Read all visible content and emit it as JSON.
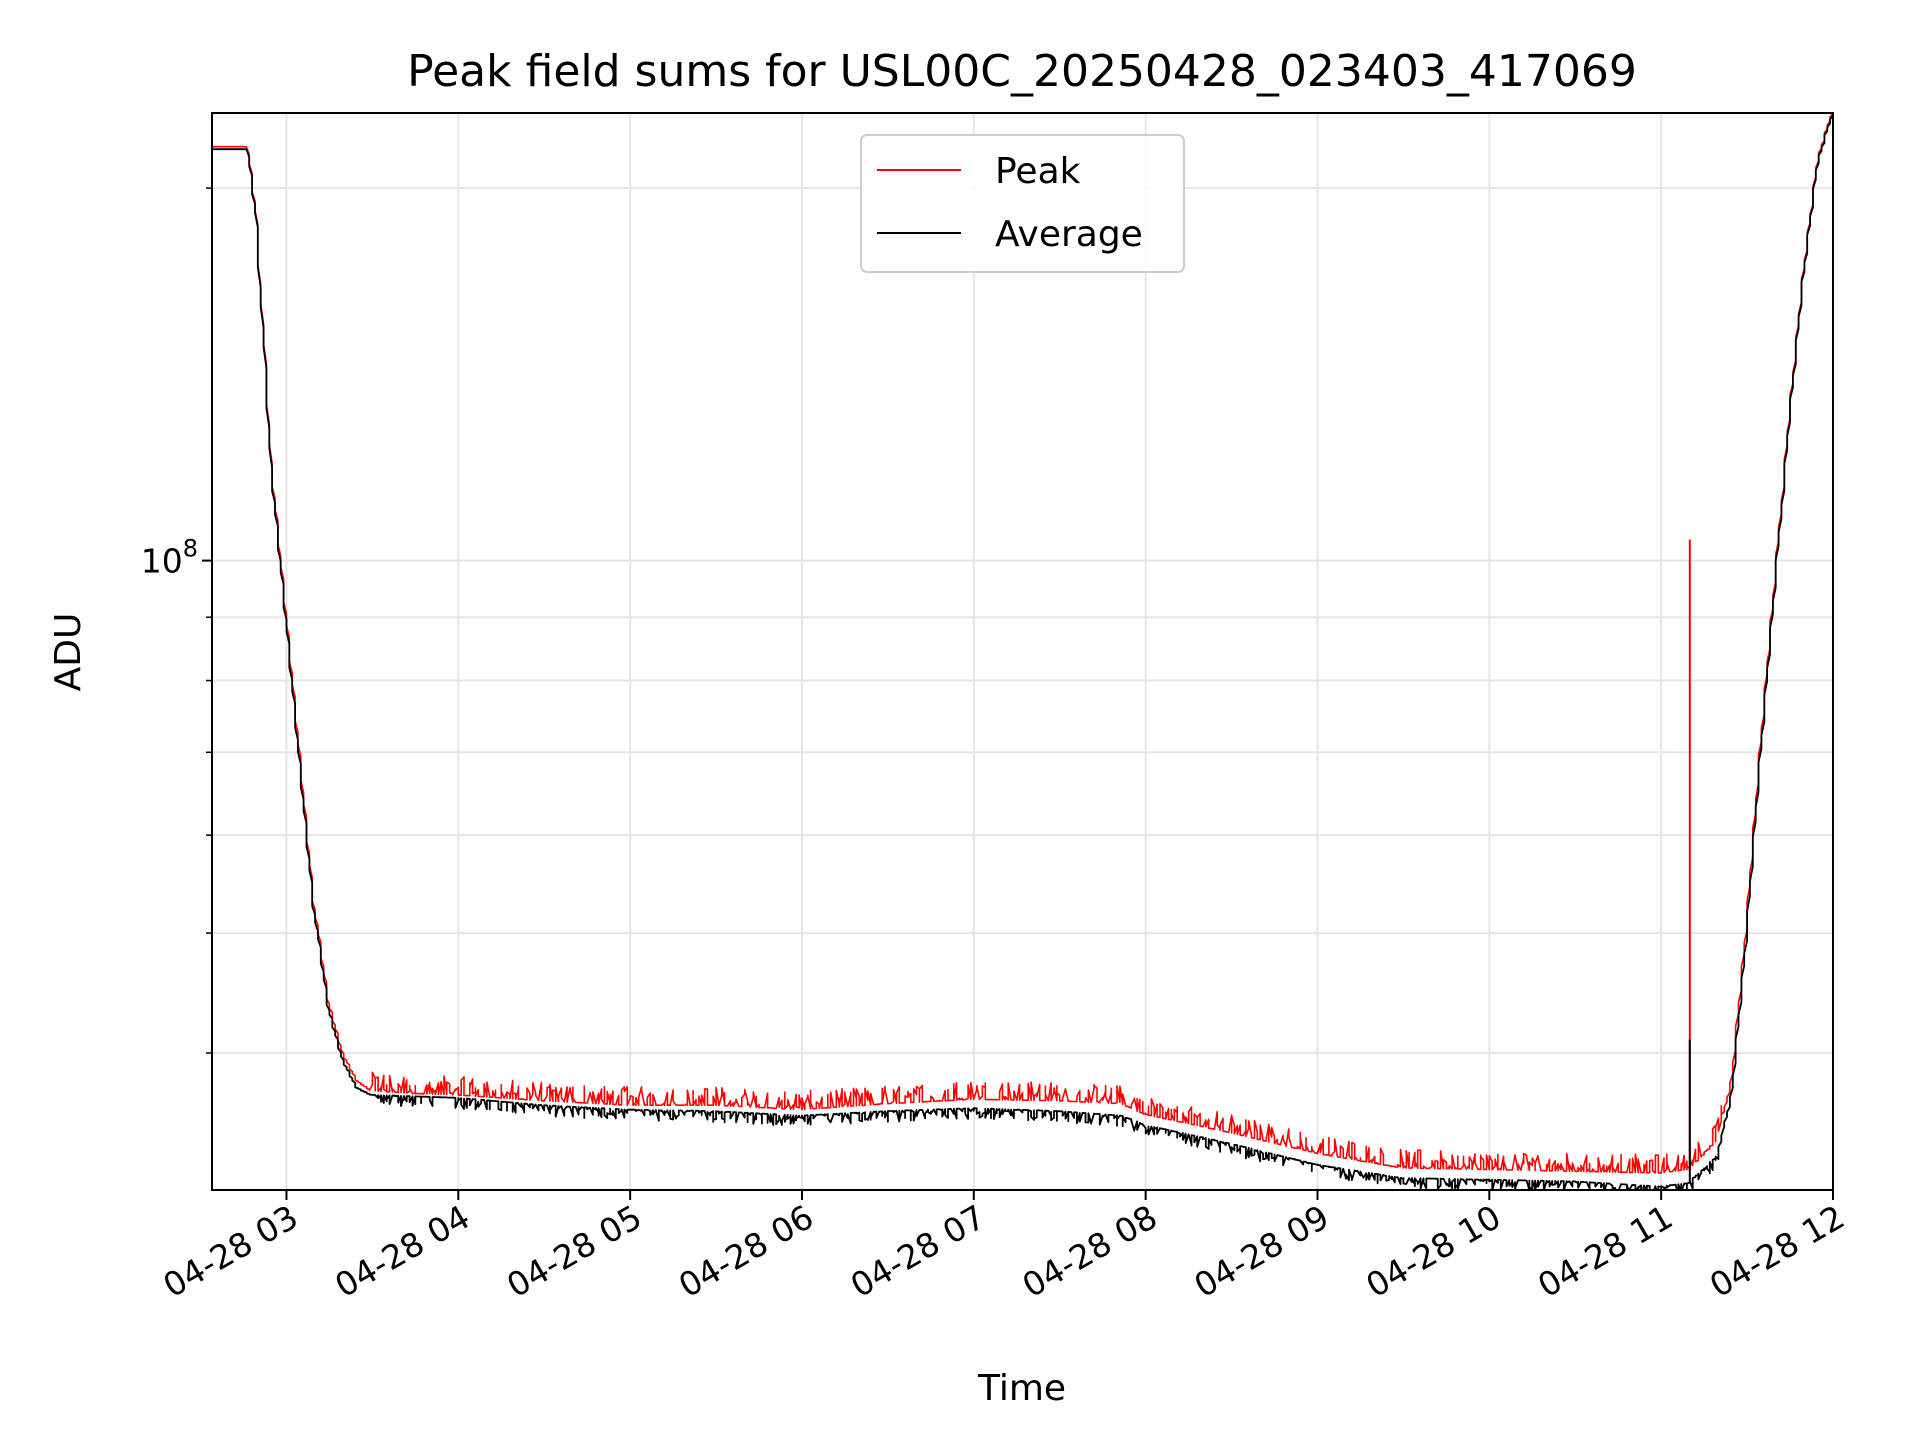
{
  "chart_data": {
    "type": "line",
    "title": "Peak field sums for USL00C_20250428_023403_417069",
    "xlabel": "Time",
    "ylabel": "ADU",
    "x_axis": "time",
    "y_scale": "log",
    "grid": true,
    "legend_placement": "top-center",
    "xlim": [
      "2025-04-28 02:34",
      "2025-04-28 12:00"
    ],
    "ylim": [
      31000000,
      230000000
    ],
    "x_ticks": [
      {
        "t": "2025-04-28 03:00",
        "label": "04-28 03"
      },
      {
        "t": "2025-04-28 04:00",
        "label": "04-28 04"
      },
      {
        "t": "2025-04-28 05:00",
        "label": "04-28 05"
      },
      {
        "t": "2025-04-28 06:00",
        "label": "04-28 06"
      },
      {
        "t": "2025-04-28 07:00",
        "label": "04-28 07"
      },
      {
        "t": "2025-04-28 08:00",
        "label": "04-28 08"
      },
      {
        "t": "2025-04-28 09:00",
        "label": "04-28 09"
      },
      {
        "t": "2025-04-28 10:00",
        "label": "04-28 10"
      },
      {
        "t": "2025-04-28 11:00",
        "label": "04-28 11"
      },
      {
        "t": "2025-04-28 12:00",
        "label": "04-28 12"
      }
    ],
    "y_major_ticks": [
      {
        "value": 100000000,
        "base": "10",
        "exp": "8"
      }
    ],
    "y_minor_ticks": [
      40000000,
      50000000,
      60000000,
      70000000,
      80000000,
      90000000,
      200000000
    ],
    "series": [
      {
        "name": "Peak",
        "color": "#ff0000",
        "points": [
          [
            "2025-04-28 02:34",
            216000000
          ],
          [
            "2025-04-28 02:47",
            216000000
          ],
          [
            "2025-04-28 02:50",
            190000000
          ],
          [
            "2025-04-28 02:55",
            120000000
          ],
          [
            "2025-04-28 03:00",
            92000000
          ],
          [
            "2025-04-28 03:05",
            70000000
          ],
          [
            "2025-04-28 03:10",
            53000000
          ],
          [
            "2025-04-28 03:15",
            44000000
          ],
          [
            "2025-04-28 03:20",
            40000000
          ],
          [
            "2025-04-28 03:25",
            38000000
          ],
          [
            "2025-04-28 03:30",
            37300000
          ],
          [
            "2025-04-28 03:45",
            37100000
          ],
          [
            "2025-04-28 04:00",
            37000000
          ],
          [
            "2025-04-28 04:30",
            36600000
          ],
          [
            "2025-04-28 05:00",
            36300000
          ],
          [
            "2025-04-28 05:30",
            36300000
          ],
          [
            "2025-04-28 06:00",
            36000000
          ],
          [
            "2025-04-28 06:30",
            36400000
          ],
          [
            "2025-04-28 07:00",
            36700000
          ],
          [
            "2025-04-28 07:30",
            36600000
          ],
          [
            "2025-04-28 07:52",
            36400000
          ],
          [
            "2025-04-28 08:00",
            35700000
          ],
          [
            "2025-04-28 08:30",
            34500000
          ],
          [
            "2025-04-28 09:00",
            33200000
          ],
          [
            "2025-04-28 09:30",
            32300000
          ],
          [
            "2025-04-28 10:00",
            32200000
          ],
          [
            "2025-04-28 10:30",
            32100000
          ],
          [
            "2025-04-28 11:00",
            32000000
          ],
          [
            "2025-04-28 11:10",
            32200000
          ],
          [
            "2025-04-28 11:20",
            34000000
          ],
          [
            "2025-04-28 11:25",
            38000000
          ],
          [
            "2025-04-28 11:30",
            50000000
          ],
          [
            "2025-04-28 11:35",
            70000000
          ],
          [
            "2025-04-28 11:40",
            95000000
          ],
          [
            "2025-04-28 11:45",
            130000000
          ],
          [
            "2025-04-28 11:50",
            170000000
          ],
          [
            "2025-04-28 11:55",
            210000000
          ],
          [
            "2025-04-28 12:00",
            230000000
          ]
        ]
      },
      {
        "name": "Average",
        "color": "#000000",
        "points": [
          [
            "2025-04-28 02:34",
            215000000
          ],
          [
            "2025-04-28 02:47",
            215000000
          ],
          [
            "2025-04-28 02:50",
            189000000
          ],
          [
            "2025-04-28 02:55",
            119000000
          ],
          [
            "2025-04-28 03:00",
            91000000
          ],
          [
            "2025-04-28 03:05",
            69000000
          ],
          [
            "2025-04-28 03:10",
            52500000
          ],
          [
            "2025-04-28 03:15",
            43500000
          ],
          [
            "2025-04-28 03:20",
            39500000
          ],
          [
            "2025-04-28 03:25",
            37500000
          ],
          [
            "2025-04-28 03:30",
            37000000
          ],
          [
            "2025-04-28 03:45",
            36900000
          ],
          [
            "2025-04-28 04:00",
            36800000
          ],
          [
            "2025-04-28 04:30",
            36300000
          ],
          [
            "2025-04-28 05:00",
            36000000
          ],
          [
            "2025-04-28 05:30",
            35900000
          ],
          [
            "2025-04-28 06:00",
            35600000
          ],
          [
            "2025-04-28 06:30",
            35900000
          ],
          [
            "2025-04-28 07:00",
            36100000
          ],
          [
            "2025-04-28 07:30",
            35900000
          ],
          [
            "2025-04-28 07:52",
            35600000
          ],
          [
            "2025-04-28 08:00",
            35000000
          ],
          [
            "2025-04-28 08:30",
            33800000
          ],
          [
            "2025-04-28 09:00",
            32500000
          ],
          [
            "2025-04-28 09:30",
            31700000
          ],
          [
            "2025-04-28 10:00",
            31600000
          ],
          [
            "2025-04-28 10:30",
            31500000
          ],
          [
            "2025-04-28 11:00",
            31200000
          ],
          [
            "2025-04-28 11:10",
            31400000
          ],
          [
            "2025-04-28 11:20",
            33000000
          ],
          [
            "2025-04-28 11:25",
            37000000
          ],
          [
            "2025-04-28 11:30",
            49000000
          ],
          [
            "2025-04-28 11:35",
            69000000
          ],
          [
            "2025-04-28 11:40",
            94000000
          ],
          [
            "2025-04-28 11:45",
            129000000
          ],
          [
            "2025-04-28 11:50",
            169000000
          ],
          [
            "2025-04-28 11:55",
            209000000
          ],
          [
            "2025-04-28 12:00",
            229000000
          ]
        ]
      }
    ],
    "annotations": [
      {
        "series": "Peak",
        "t": "2025-04-28 11:10",
        "value": 104000000,
        "note": "isolated spike"
      },
      {
        "series": "Average",
        "t": "2025-04-28 11:10",
        "value": 41000000,
        "note": "isolated spike"
      }
    ]
  }
}
